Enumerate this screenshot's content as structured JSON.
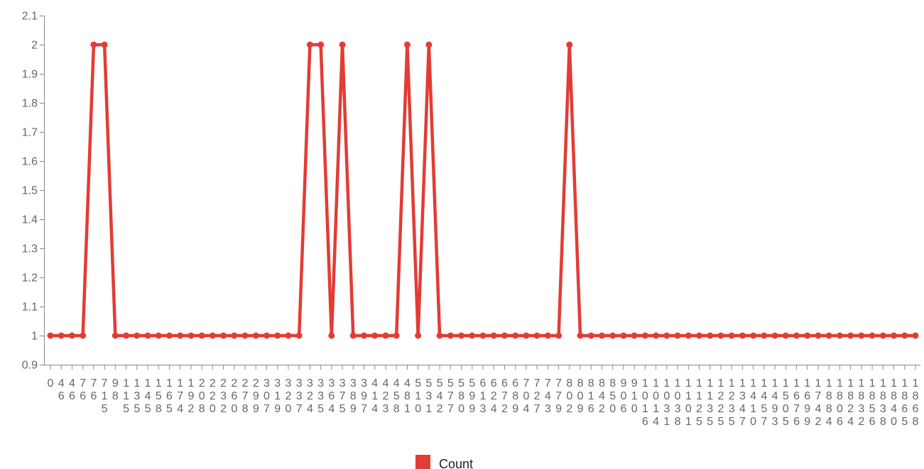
{
  "chart_data": {
    "type": "line",
    "x": [
      "0",
      "46",
      "46",
      "76",
      "76",
      "715",
      "98",
      "115",
      "135",
      "145",
      "158",
      "165",
      "174",
      "192",
      "208",
      "220",
      "232",
      "260",
      "278",
      "299",
      "307",
      "319",
      "320",
      "337",
      "324",
      "335",
      "364",
      "375",
      "389",
      "397",
      "414",
      "423",
      "458",
      "481",
      "510",
      "531",
      "542",
      "577",
      "580",
      "599",
      "613",
      "624",
      "672",
      "689",
      "704",
      "727",
      "743",
      "779",
      "802",
      "809",
      "816",
      "842",
      "850",
      "906",
      "910",
      "1016",
      "1014",
      "1031",
      "1038",
      "1101",
      "1125",
      "1135",
      "1225",
      "1235",
      "1347",
      "1410",
      "1457",
      "1493",
      "1505",
      "1676",
      "1699",
      "1742",
      "1884",
      "1806",
      "1824",
      "1832",
      "1856",
      "1838",
      "1840",
      "1865",
      "1868"
    ],
    "series": [
      {
        "name": "Count",
        "color": "#e23c35",
        "values": [
          1,
          1,
          1,
          1,
          2,
          2,
          1,
          1,
          1,
          1,
          1,
          1,
          1,
          1,
          1,
          1,
          1,
          1,
          1,
          1,
          1,
          1,
          1,
          1,
          2,
          2,
          1,
          2,
          1,
          1,
          1,
          1,
          1,
          2,
          1,
          2,
          1,
          1,
          1,
          1,
          1,
          1,
          1,
          1,
          1,
          1,
          1,
          1,
          2,
          1,
          1,
          1,
          1,
          1,
          1,
          1,
          1,
          1,
          1,
          1,
          1,
          1,
          1,
          1,
          1,
          1,
          1,
          1,
          1,
          1,
          1,
          1,
          1,
          1,
          1,
          1,
          1,
          1,
          1,
          1,
          1
        ]
      }
    ],
    "y_ticks": [
      "0.9",
      "1",
      "1.1",
      "1.2",
      "1.3",
      "1.4",
      "1.5",
      "1.6",
      "1.7",
      "1.8",
      "1.9",
      "2",
      "2.1"
    ],
    "ylim": [
      0.9,
      2.1
    ],
    "legend": "bottom",
    "grid": false
  }
}
